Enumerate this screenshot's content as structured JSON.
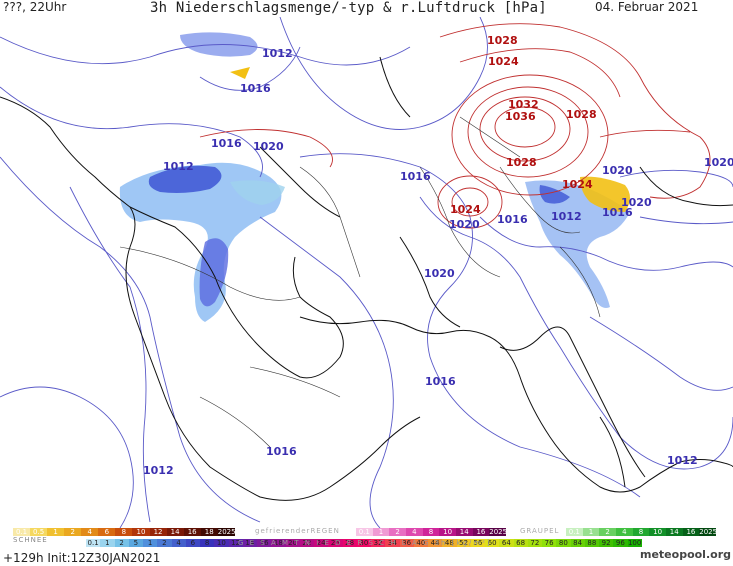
{
  "header": {
    "left": "???, 22Uhr",
    "title": "3h Niederschlagsmenge/-typ & r.Luftdruck [hPa]",
    "date": "04. Februar 2021"
  },
  "isobar_labels": [
    {
      "text": "1012",
      "color": "#3a2fb0"
    },
    {
      "text": "1016",
      "color": "#3a2fb0"
    },
    {
      "text": "1016",
      "color": "#3a2fb0"
    },
    {
      "text": "1020",
      "color": "#3a2fb0"
    },
    {
      "text": "1012",
      "color": "#3a2fb0"
    },
    {
      "text": "1016",
      "color": "#3a2fb0"
    },
    {
      "text": "1020",
      "color": "#3a2fb0"
    },
    {
      "text": "1016",
      "color": "#3a2fb0"
    },
    {
      "text": "1020",
      "color": "#3a2fb0"
    },
    {
      "text": "1016",
      "color": "#3a2fb0"
    },
    {
      "text": "1016",
      "color": "#3a2fb0"
    },
    {
      "text": "1012",
      "color": "#3a2fb0"
    },
    {
      "text": "1012",
      "color": "#3a2fb0"
    },
    {
      "text": "1012",
      "color": "#3a2fb0"
    },
    {
      "text": "1016",
      "color": "#3a2fb0"
    },
    {
      "text": "1020",
      "color": "#3a2fb0"
    },
    {
      "text": "1020",
      "color": "#3a2fb0"
    },
    {
      "text": "1020",
      "color": "#3a2fb0"
    },
    {
      "text": "1028",
      "color": "#b01010"
    },
    {
      "text": "1024",
      "color": "#b01010"
    },
    {
      "text": "1032",
      "color": "#b01010"
    },
    {
      "text": "1036",
      "color": "#b01010"
    },
    {
      "text": "1028",
      "color": "#b01010"
    },
    {
      "text": "1028",
      "color": "#b01010"
    },
    {
      "text": "1024",
      "color": "#b01010"
    },
    {
      "text": "1024",
      "color": "#b01010"
    }
  ],
  "legend": {
    "snow_label": "SCHNEE",
    "freezing_rain_label": "gefrierenderREGEN",
    "graupel_label": "GRAUPEL",
    "total_label": "G E S A M T N I E D E R S C H L A G   3h   [kg/m²]",
    "snow_values": [
      "0.1",
      "0.5",
      "1",
      "2",
      "4",
      "6",
      "8",
      "10",
      "12",
      "14",
      "16",
      "18",
      "2025+"
    ],
    "freezing_values": [
      "0.1",
      "1",
      "2",
      "4",
      "8",
      "10",
      "14",
      "16",
      "2025+"
    ],
    "graupel_values": [
      "0.1",
      "1",
      "2",
      "4",
      "8",
      "10",
      "14",
      "16",
      "2025+"
    ],
    "total_values": [
      "0.1",
      "1",
      "2",
      "5",
      "1",
      "2",
      "4",
      "6",
      "8",
      "10",
      "12",
      "14",
      "16",
      "18",
      "20",
      "22",
      "24",
      "26",
      "28",
      "30",
      "32",
      "34",
      "36",
      "40",
      "44",
      "48",
      "52",
      "56",
      "60",
      "64",
      "68",
      "72",
      "76",
      "80",
      "84",
      "88",
      "92",
      "96",
      "100"
    ],
    "snow_colors": [
      "#f8e9a8",
      "#f5d860",
      "#f0c030",
      "#eaa820",
      "#e28a18",
      "#d86a10",
      "#c84e0c",
      "#b2360a",
      "#962408",
      "#7a1806",
      "#5e1004",
      "#420a03",
      "#2a0502"
    ],
    "freezing_colors": [
      "#f7c6e6",
      "#f09ad4",
      "#e86ec2",
      "#de48ae",
      "#d0249a",
      "#b81488",
      "#980c72",
      "#78065c",
      "#580246"
    ],
    "graupel_colors": [
      "#c8f0c0",
      "#98e090",
      "#68d060",
      "#40c040",
      "#22a830",
      "#129028",
      "#0a7820",
      "#056018",
      "#024810"
    ],
    "total_colors": [
      "#bfe4f4",
      "#9ad4ee",
      "#76c2e8",
      "#5aa8e0",
      "#5090dc",
      "#4a78d4",
      "#4460cc",
      "#3e48c4",
      "#3832bc",
      "#4a2cb4",
      "#5c26ac",
      "#6e20a4",
      "#801a9c",
      "#921494",
      "#a4108c",
      "#b60c84",
      "#c8087c",
      "#d80674",
      "#e8046c",
      "#f00864",
      "#f0245a",
      "#f04050",
      "#f05c46",
      "#f0783c",
      "#f09432",
      "#f0b028",
      "#f0c822",
      "#ecd81e",
      "#e0e01a",
      "#cce016",
      "#b8e012",
      "#a4e00e",
      "#90e00a",
      "#7cd808",
      "#68d006",
      "#54c804",
      "#40c002",
      "#2cb801",
      "#18b000"
    ]
  },
  "footer": {
    "run": "+129h  Init:12Z30JAN2021",
    "logo": "meteopool.org"
  }
}
